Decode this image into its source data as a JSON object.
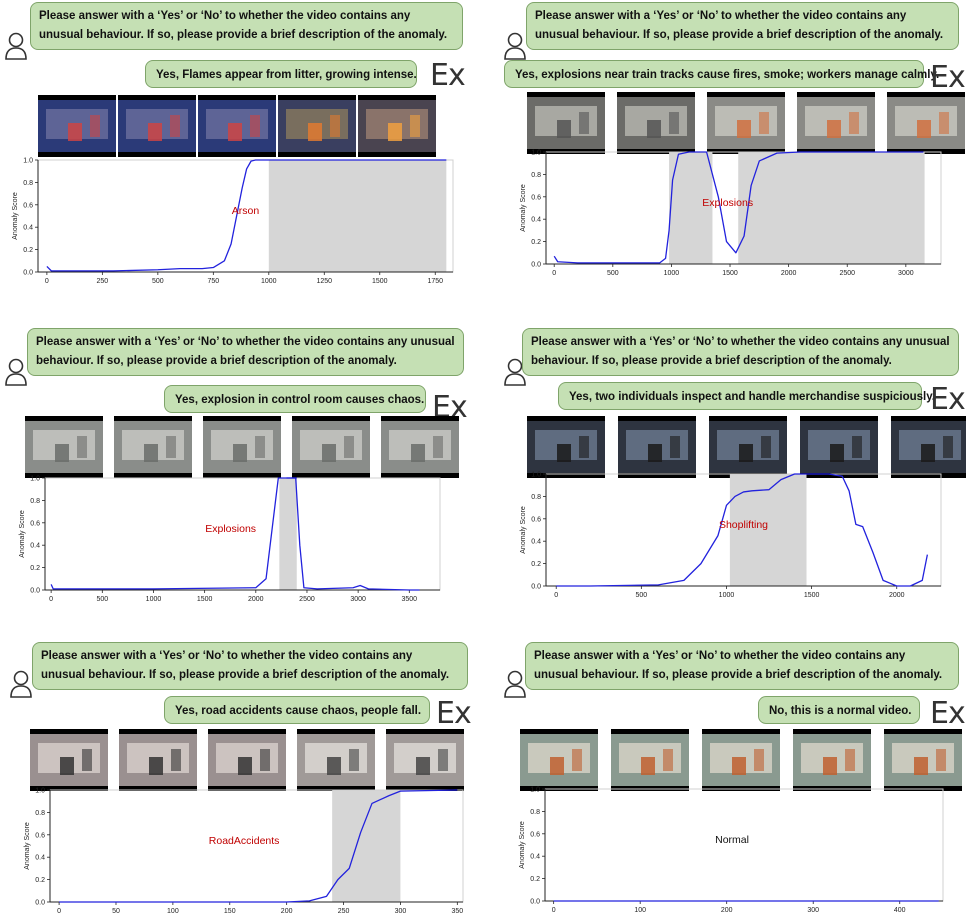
{
  "question": "Please answer with a ‘Yes’ or ‘No’ to whether the video contains any unusual behaviour. If so, please provide a brief description of the anomaly.",
  "ex_label": "Ex",
  "y_axis_label": "Anomaly Score",
  "panels": [
    {
      "answer": "Yes, Flames appear from litter, growing intense.",
      "thumb_colors": [
        [
          "#2b3a78",
          "#6b6f9e",
          "#c44"
        ],
        [
          "#2b3a78",
          "#6b6f9e",
          "#c44"
        ],
        [
          "#2b3a78",
          "#6b6f9e",
          "#c44"
        ],
        [
          "#3a3f60",
          "#8a7a5e",
          "#e07a30"
        ],
        [
          "#4a4450",
          "#9a8070",
          "#f0a040"
        ]
      ]
    },
    {
      "answer": "Yes, explosions near train tracks cause fires, smoke; workers manage calmly.",
      "thumb_colors": [
        [
          "#6b6b68",
          "#b8b8b0",
          "#555"
        ],
        [
          "#6b6b68",
          "#b8b8b0",
          "#555"
        ],
        [
          "#8a8a86",
          "#c8c8c0",
          "#d07040"
        ],
        [
          "#8a8a86",
          "#c8c8c0",
          "#d07040"
        ],
        [
          "#8a8a86",
          "#c8c8c0",
          "#d07040"
        ]
      ]
    },
    {
      "answer": "Yes, explosion in control room causes chaos.",
      "thumb_colors": [
        [
          "#8a8d8a",
          "#c9cbc6",
          "#6a6d6a"
        ],
        [
          "#8a8d8a",
          "#c9cbc6",
          "#6a6d6a"
        ],
        [
          "#8a8d8a",
          "#c9cbc6",
          "#6a6d6a"
        ],
        [
          "#8a8d8a",
          "#c9cbc6",
          "#6a6d6a"
        ],
        [
          "#8a8d8a",
          "#c9cbc6",
          "#6a6d6a"
        ]
      ]
    },
    {
      "answer": "Yes, two individuals inspect and handle merchandise suspiciously.",
      "thumb_colors": [
        [
          "#2e3440",
          "#6b7a90",
          "#1a1a1a"
        ],
        [
          "#2e3440",
          "#6b7a90",
          "#1a1a1a"
        ],
        [
          "#2e3440",
          "#6b7a90",
          "#1a1a1a"
        ],
        [
          "#2e3440",
          "#6b7a90",
          "#1a1a1a"
        ],
        [
          "#2e3440",
          "#6b7a90",
          "#1a1a1a"
        ]
      ]
    },
    {
      "answer": "Yes, road accidents cause chaos, people fall.",
      "thumb_colors": [
        [
          "#9a9090",
          "#d8d0cc",
          "#333"
        ],
        [
          "#9a9090",
          "#d8d0cc",
          "#333"
        ],
        [
          "#9a9090",
          "#d8d0cc",
          "#333"
        ],
        [
          "#a09a98",
          "#e0dcd8",
          "#444"
        ],
        [
          "#a09a98",
          "#e0dcd8",
          "#444"
        ]
      ]
    },
    {
      "answer": "No, this is a normal video.",
      "thumb_colors": [
        [
          "#8a9a90",
          "#d8d4c8",
          "#c06030"
        ],
        [
          "#8a9a90",
          "#d8d4c8",
          "#c06030"
        ],
        [
          "#8a9a90",
          "#d8d4c8",
          "#c06030"
        ],
        [
          "#8a9a90",
          "#d8d4c8",
          "#c06030"
        ],
        [
          "#8a9a90",
          "#d8d4c8",
          "#c06030"
        ]
      ]
    }
  ],
  "chart_data": [
    {
      "type": "line",
      "ylabel": "Anomaly Score",
      "annotation": "Arson",
      "xlim": [
        -40,
        1830
      ],
      "ylim": [
        0,
        1.0
      ],
      "xticks": [
        0,
        250,
        500,
        750,
        1000,
        1250,
        1500,
        1750
      ],
      "yticks": [
        0.0,
        0.2,
        0.4,
        0.6,
        0.8,
        1.0
      ],
      "anomaly_span": [
        1000,
        1800
      ],
      "x": [
        0,
        20,
        100,
        300,
        500,
        600,
        700,
        750,
        800,
        830,
        860,
        880,
        900,
        920,
        940,
        1000,
        1800
      ],
      "y": [
        0.05,
        0.01,
        0.01,
        0.01,
        0.02,
        0.03,
        0.03,
        0.04,
        0.1,
        0.25,
        0.55,
        0.75,
        0.92,
        0.99,
        1.0,
        1.0,
        1.0
      ]
    },
    {
      "type": "line",
      "ylabel": "Anomaly Score",
      "annotation": "Explosions",
      "xlim": [
        -70,
        3300
      ],
      "ylim": [
        0,
        1.0
      ],
      "xticks": [
        0,
        500,
        1000,
        1500,
        2000,
        2500,
        3000
      ],
      "yticks": [
        0.0,
        0.2,
        0.4,
        0.6,
        0.8,
        1.0
      ],
      "anomaly_span": [
        [
          980,
          1350
        ],
        [
          1570,
          3160
        ]
      ],
      "x": [
        0,
        30,
        200,
        600,
        900,
        950,
        980,
        1010,
        1060,
        1150,
        1300,
        1400,
        1470,
        1550,
        1620,
        1680,
        1750,
        1900,
        2100,
        2500,
        3150
      ],
      "y": [
        0.07,
        0.02,
        0.01,
        0.01,
        0.01,
        0.05,
        0.3,
        0.75,
        0.98,
        1.0,
        1.0,
        0.6,
        0.2,
        0.1,
        0.25,
        0.7,
        0.92,
        0.99,
        1.0,
        1.0,
        1.0
      ]
    },
    {
      "type": "line",
      "ylabel": "Anomaly Score",
      "annotation": "Explosions",
      "xlim": [
        -60,
        3800
      ],
      "ylim": [
        0,
        1.0
      ],
      "xticks": [
        0,
        500,
        1000,
        1500,
        2000,
        2500,
        3000,
        3500
      ],
      "yticks": [
        0.0,
        0.2,
        0.4,
        0.6,
        0.8,
        1.0
      ],
      "anomaly_span": [
        2230,
        2400
      ],
      "x": [
        0,
        20,
        200,
        1000,
        2000,
        2100,
        2180,
        2220,
        2260,
        2350,
        2390,
        2430,
        2470,
        2600,
        2950,
        3020,
        3100,
        3500,
        3600
      ],
      "y": [
        0.05,
        0.01,
        0.01,
        0.01,
        0.02,
        0.1,
        0.7,
        1.0,
        1.0,
        1.0,
        1.0,
        0.4,
        0.02,
        0.01,
        0.02,
        0.04,
        0.01,
        0.0,
        0.0
      ],
      "x2": [
        2300,
        2340,
        2380,
        2400
      ],
      "y2": [
        1.0,
        1.0,
        1.0,
        1.0
      ]
    },
    {
      "type": "line",
      "ylabel": "Anomaly Score",
      "annotation": "Shoplifting",
      "xlim": [
        -60,
        2260
      ],
      "ylim": [
        0,
        1.0
      ],
      "xticks": [
        0,
        500,
        1000,
        1500,
        2000
      ],
      "yticks": [
        0.0,
        0.2,
        0.4,
        0.6,
        0.8,
        1.0
      ],
      "anomaly_span": [
        1020,
        1470
      ],
      "x": [
        0,
        200,
        600,
        750,
        850,
        950,
        1000,
        1050,
        1100,
        1150,
        1250,
        1320,
        1400,
        1500,
        1600,
        1680,
        1720,
        1760,
        1800,
        1860,
        1920,
        2000,
        2080,
        2150,
        2180
      ],
      "y": [
        0.0,
        0.0,
        0.01,
        0.05,
        0.2,
        0.45,
        0.72,
        0.8,
        0.84,
        0.85,
        0.86,
        0.95,
        1.0,
        1.0,
        1.0,
        0.98,
        0.85,
        0.55,
        0.53,
        0.3,
        0.05,
        0.0,
        0.0,
        0.05,
        0.28
      ]
    },
    {
      "type": "line",
      "ylabel": "Anomaly Score",
      "annotation": "RoadAccidents",
      "xlim": [
        -8,
        355
      ],
      "ylim": [
        0,
        1.0
      ],
      "xticks": [
        0,
        50,
        100,
        150,
        200,
        250,
        300,
        350
      ],
      "yticks": [
        0.0,
        0.2,
        0.4,
        0.6,
        0.8,
        1.0
      ],
      "anomaly_span": [
        240,
        300
      ],
      "x": [
        0,
        50,
        150,
        200,
        220,
        235,
        245,
        255,
        265,
        275,
        290,
        300,
        350
      ],
      "y": [
        0.0,
        0.0,
        0.0,
        0.0,
        0.01,
        0.05,
        0.2,
        0.3,
        0.62,
        0.88,
        0.95,
        0.99,
        1.0
      ]
    },
    {
      "type": "line",
      "ylabel": "Anomaly Score",
      "annotation": "Normal",
      "xlim": [
        -10,
        450
      ],
      "ylim": [
        0,
        1.0
      ],
      "xticks": [
        0,
        100,
        200,
        300,
        400
      ],
      "yticks": [
        0.0,
        0.2,
        0.4,
        0.6,
        0.8,
        1.0
      ],
      "anomaly_span": [],
      "x": [
        0,
        100,
        200,
        300,
        400,
        445
      ],
      "y": [
        0.0,
        0.0,
        0.0,
        0.0,
        0.0,
        0.0
      ]
    }
  ]
}
